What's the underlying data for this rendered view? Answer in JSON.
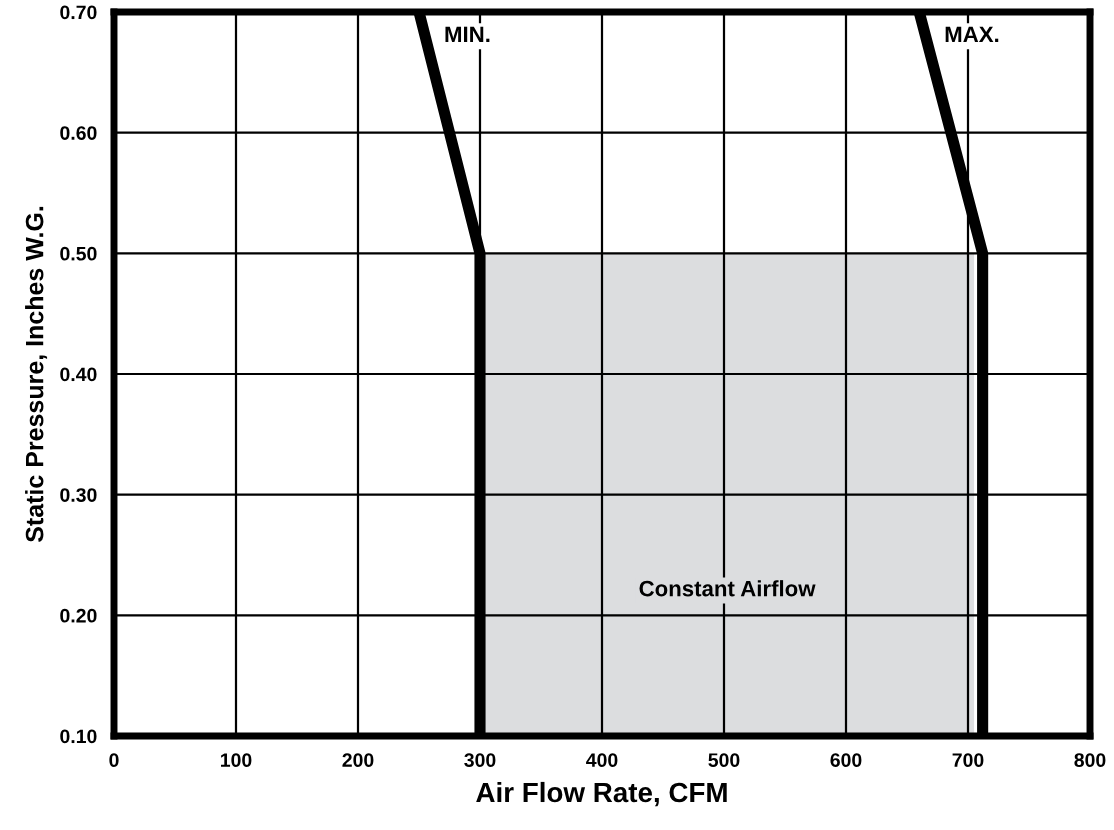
{
  "chart_data": {
    "type": "line",
    "xlabel": "Air Flow Rate, CFM",
    "ylabel": "Static Pressure, Inches W.G.",
    "xlim": [
      0,
      800
    ],
    "ylim": [
      0.1,
      0.7
    ],
    "xticks": [
      0,
      100,
      200,
      300,
      400,
      500,
      600,
      700,
      800
    ],
    "yticks": [
      {
        "value": 0.1,
        "label": "0.10"
      },
      {
        "value": 0.2,
        "label": "0.20"
      },
      {
        "value": 0.3,
        "label": "0.30"
      },
      {
        "value": 0.4,
        "label": "0.40"
      },
      {
        "value": 0.5,
        "label": "0.50"
      },
      {
        "value": 0.6,
        "label": "0.60"
      },
      {
        "value": 0.7,
        "label": "0.70"
      }
    ],
    "grid": true,
    "legend": false,
    "series": [
      {
        "type": "area",
        "color": "#dcdddf",
        "x": [
          300,
          705
        ],
        "values": [
          0.5,
          0.5
        ]
      },
      {
        "name": "MIN.",
        "color": "#000000",
        "x": [
          300,
          300,
          250
        ],
        "values": [
          0.1,
          0.5,
          0.7
        ]
      },
      {
        "name": "MAX.",
        "color": "#000000",
        "x": [
          712,
          712,
          660
        ],
        "values": [
          0.1,
          0.5,
          0.7
        ]
      }
    ],
    "annotations": [
      "Constant Airflow"
    ]
  }
}
